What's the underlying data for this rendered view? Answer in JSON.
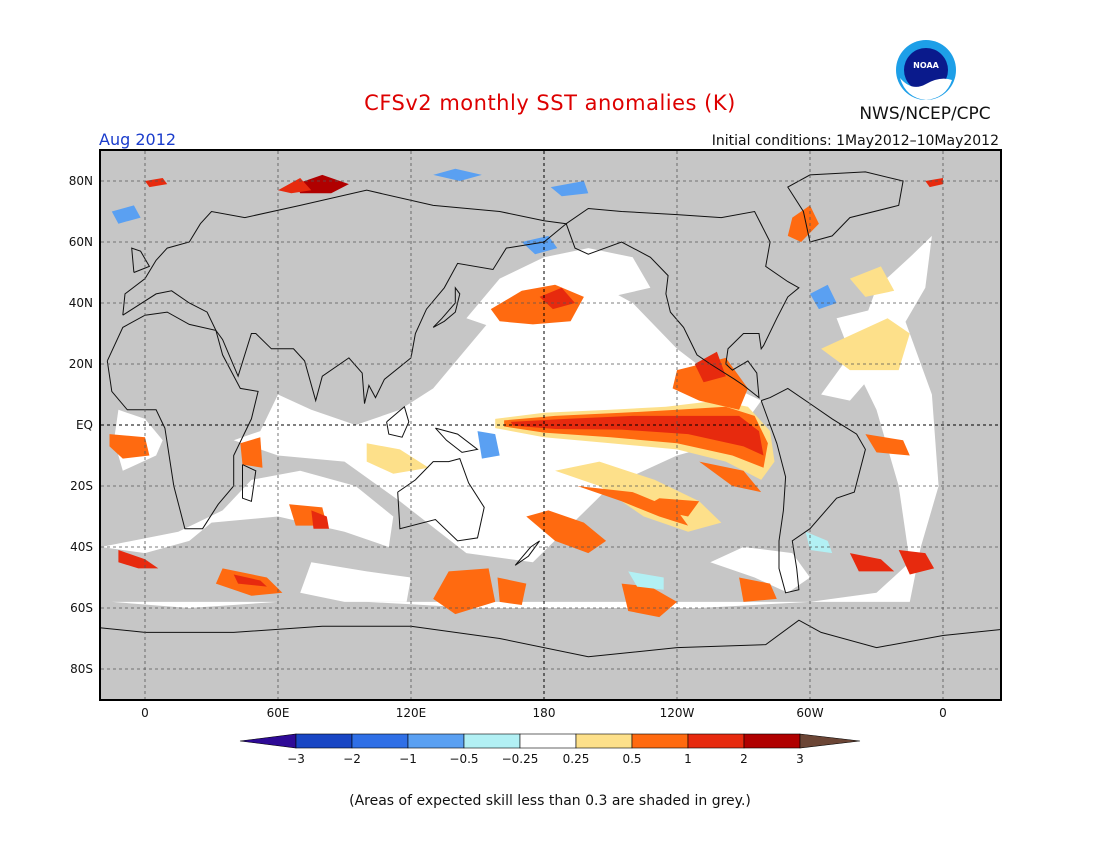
{
  "header": {
    "title": "CFSv2 monthly SST anomalies (K)",
    "title_color": "#dd0000",
    "valid_month": "Aug 2012",
    "valid_month_color": "#1a3ccc",
    "agency": "NWS/NCEP/CPC",
    "initial_conditions": "Initial conditions: 1May2012–10May2012",
    "logo_text": "NOAA"
  },
  "map": {
    "lat_labels": [
      "80N",
      "60N",
      "40N",
      "20N",
      "EQ",
      "20S",
      "40S",
      "60S",
      "80S"
    ],
    "lon_labels": [
      "0",
      "60E",
      "120E",
      "180",
      "120W",
      "60W",
      "0"
    ],
    "land_color": "#c6c6c6",
    "ocean_color": "#ffffff",
    "low_skill_color": "#c6c6c6"
  },
  "colorbar": {
    "ticks": [
      "−3",
      "−2",
      "−1",
      "−0.5",
      "−0.25",
      "0.25",
      "0.5",
      "1",
      "2",
      "3"
    ],
    "low_cap_color": "#2e0a96",
    "high_cap_color": "#6b4535",
    "colors": [
      "#1846c4",
      "#2f6fe6",
      "#5aa0f2",
      "#b2f0f4",
      "#ffffff",
      "#fde08a",
      "#ff6a10",
      "#e72a0e",
      "#b00000"
    ]
  },
  "footnote": "(Areas of expected skill less than 0.3 are shaded in grey.)"
}
